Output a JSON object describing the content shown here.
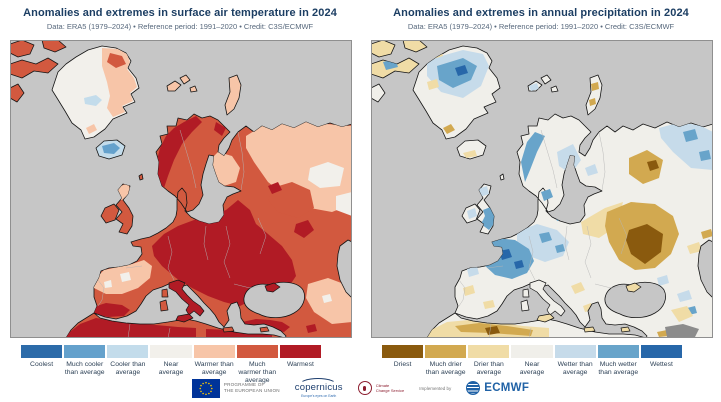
{
  "theme": {
    "background": "#ffffff",
    "title_color": "#1c3e63",
    "subtitle_color": "#57687c",
    "legend_label_color": "#2e4257",
    "map_frame_color": "#8f8f8f",
    "coast_color": "#151515",
    "country_border_color": "#b5b5b5"
  },
  "panels": [
    {
      "id": "temperature",
      "title": "Anomalies and extremes in surface air temperature in 2024",
      "subtitle": "Data: ERA5 (1979–2024) • Reference period: 1991–2020 • Credit: C3S/ECMWF",
      "legend": [
        {
          "label": "Coolest",
          "color": "#2c6ba9"
        },
        {
          "label": "Much cooler than average",
          "color": "#64a1cc"
        },
        {
          "label": "Cooler than average",
          "color": "#c3dceb"
        },
        {
          "label": "Near average",
          "color": "#f2f0eb"
        },
        {
          "label": "Warmer than average",
          "color": "#f7c5a8"
        },
        {
          "label": "Much warmer than average",
          "color": "#d2593f"
        },
        {
          "label": "Warmest",
          "color": "#b11b25"
        }
      ],
      "map": {
        "ocean_color": "#c6c6c6",
        "nodata_color": "#8c8c8c",
        "regions": {
          "mainland": 5,
          "greenland": 3,
          "iceland": 2,
          "uk": 5,
          "ireland": 5,
          "canada1": 5,
          "canada2": 5,
          "canada3": 5,
          "canada4": 5,
          "svalbard1": 4,
          "svalbard2": 4,
          "svalbard3": 4,
          "novaya": 4,
          "shetland": 5,
          "italy": 6,
          "sicily": 6,
          "sardinia": 5,
          "corsica": 5,
          "crete": 5,
          "cyprus": 5,
          "crimea": 6
        },
        "patches": [
          {
            "id": "t_ne_russia",
            "cat": 4
          },
          {
            "id": "t_white_ne1",
            "cat": 3
          },
          {
            "id": "t_white_ne2",
            "cat": 3
          },
          {
            "id": "t_rus_c5",
            "cat": 5
          },
          {
            "id": "t_rus_c6a",
            "cat": 6
          },
          {
            "id": "t_rus_c6b",
            "cat": 6
          },
          {
            "id": "t_main_c6",
            "cat": 6
          },
          {
            "id": "t_scand_c6",
            "cat": 6
          },
          {
            "id": "t_kola_c6",
            "cat": 6
          },
          {
            "id": "t_finland_c4",
            "cat": 4
          },
          {
            "id": "t_fr_c4",
            "cat": 4
          },
          {
            "id": "t_fr_w1",
            "cat": 3
          },
          {
            "id": "t_fr_w2",
            "cat": 3
          },
          {
            "id": "t_sp_c6",
            "cat": 6
          },
          {
            "id": "t_na_c6",
            "cat": 6
          },
          {
            "id": "t_na_c6b",
            "cat": 6
          },
          {
            "id": "t_turkey_c6",
            "cat": 6
          },
          {
            "id": "t_me_c4",
            "cat": 4
          },
          {
            "id": "t_me_w",
            "cat": 3
          },
          {
            "id": "t_me_c6a",
            "cat": 6
          },
          {
            "id": "t_me_c6b",
            "cat": 6
          },
          {
            "id": "t_uk_c4",
            "cat": 4
          },
          {
            "id": "t_gl_c4",
            "cat": 4
          },
          {
            "id": "t_gl_c5",
            "cat": 5
          },
          {
            "id": "t_gl_c2",
            "cat": 2
          },
          {
            "id": "t_gl_c4b",
            "cat": 4
          },
          {
            "id": "t_ice_c1",
            "cat": 1
          }
        ]
      }
    },
    {
      "id": "precipitation",
      "title": "Anomalies and extremes in annual precipitation in 2024",
      "subtitle": "Data: ERA5 (1979–2024) • Reference period: 1991–2020 • Credit: C3S/ECMWF",
      "legend": [
        {
          "label": "Driest",
          "color": "#8a5a0e"
        },
        {
          "label": "Much drier than average",
          "color": "#d2a950"
        },
        {
          "label": "Drier than average",
          "color": "#f0dca6"
        },
        {
          "label": "Near average",
          "color": "#f0efea"
        },
        {
          "label": "Wetter than average",
          "color": "#c6dbea"
        },
        {
          "label": "Much wetter than average",
          "color": "#68a4ca"
        },
        {
          "label": "Wettest",
          "color": "#2767a9"
        }
      ],
      "map": {
        "ocean_color": "#c6c6c6",
        "nodata_color": "#8c8c8c",
        "regions": {
          "mainland": 3,
          "greenland": 3,
          "iceland": 3,
          "uk": 3,
          "ireland": 3,
          "canada1": 2,
          "canada2": 2,
          "canada3": 2,
          "canada4": 3,
          "svalbard1": 3,
          "svalbard2": 3,
          "svalbard3": 3,
          "novaya": 3,
          "shetland": 3,
          "italy": 3,
          "sicily": 2,
          "sardinia": 3,
          "corsica": 3,
          "crete": 2,
          "cyprus": 2,
          "crimea": 2
        },
        "patches": [
          {
            "id": "p_ne_c4",
            "cat": 4
          },
          {
            "id": "p_ne_c5a",
            "cat": 5
          },
          {
            "id": "p_ne_c5b",
            "cat": 5
          },
          {
            "id": "p_rusN_c1",
            "cat": 1
          },
          {
            "id": "p_rusN_c0",
            "cat": 0
          },
          {
            "id": "p_ee_c2",
            "cat": 2
          },
          {
            "id": "p_ua_c1",
            "cat": 1
          },
          {
            "id": "p_ua_c0",
            "cat": 0
          },
          {
            "id": "p_ce_c4",
            "cat": 4
          },
          {
            "id": "p_ce_c5a",
            "cat": 5
          },
          {
            "id": "p_fr_c5",
            "cat": 5
          },
          {
            "id": "p_fr_c6a",
            "cat": 6
          },
          {
            "id": "p_fr_c6b",
            "cat": 6
          },
          {
            "id": "p_dk_c5",
            "cat": 5
          },
          {
            "id": "p_de_c5",
            "cat": 5
          },
          {
            "id": "p_balt_c5",
            "cat": 5
          },
          {
            "id": "p_no_c5",
            "cat": 5
          },
          {
            "id": "p_se_c4",
            "cat": 4
          },
          {
            "id": "p_fi_c4",
            "cat": 4
          },
          {
            "id": "p_ib_c2a",
            "cat": 2
          },
          {
            "id": "p_ib_c2b",
            "cat": 2
          },
          {
            "id": "p_ib_c4",
            "cat": 4
          },
          {
            "id": "p_na_c2",
            "cat": 2
          },
          {
            "id": "p_na_c1",
            "cat": 1
          },
          {
            "id": "p_na_c0",
            "cat": 0
          },
          {
            "id": "p_gr_c2a",
            "cat": 2
          },
          {
            "id": "p_gr_c2b",
            "cat": 2
          },
          {
            "id": "p_tr_c4a",
            "cat": 4
          },
          {
            "id": "p_tr_c4b",
            "cat": 4
          },
          {
            "id": "p_tr_c5",
            "cat": 5
          },
          {
            "id": "p_me_c2",
            "cat": 2
          },
          {
            "id": "p_me_c1",
            "cat": 1
          },
          {
            "id": "p_cauc_c2",
            "cat": 2
          },
          {
            "id": "p_casp_c1",
            "cat": 1
          },
          {
            "id": "p_uk_c5",
            "cat": 5
          },
          {
            "id": "p_uk_c4",
            "cat": 4
          },
          {
            "id": "p_ie_c4",
            "cat": 4
          },
          {
            "id": "p_ice_c2",
            "cat": 2
          },
          {
            "id": "p_gl_c4",
            "cat": 4
          },
          {
            "id": "p_gl_c5",
            "cat": 5
          },
          {
            "id": "p_gl_c6a",
            "cat": 6
          },
          {
            "id": "p_gl_c2a",
            "cat": 2
          },
          {
            "id": "p_gl_c2b",
            "cat": 2
          },
          {
            "id": "p_gl_c1",
            "cat": 1
          },
          {
            "id": "p_sval_c4",
            "cat": 4
          },
          {
            "id": "p_nz_c1a",
            "cat": 1
          },
          {
            "id": "p_nz_c1b",
            "cat": 1
          },
          {
            "id": "p_can_c5",
            "cat": 5
          },
          {
            "id": "p_nodata",
            "cat": "nodata"
          }
        ]
      }
    }
  ],
  "footer": {
    "eu_label_line1": "PROGRAMME OF",
    "eu_label_line2": "THE EUROPEAN UNION",
    "copernicus_text": "copernicus",
    "copernicus_tagline": "Europe's eyes on Earth",
    "c3s_line1": "Climate",
    "c3s_line2": "Change Service",
    "implemented_by": "Implemented by",
    "ecmwf_text": "ECMWF",
    "colors": {
      "eu_blue": "#003399",
      "eu_star": "#ffcc00",
      "copernicus_blue": "#1d3e6e",
      "c3s_maroon": "#8c1d2f",
      "ecmwf_blue": "#2062a6",
      "small_text_gray": "#6b6b6b"
    }
  }
}
